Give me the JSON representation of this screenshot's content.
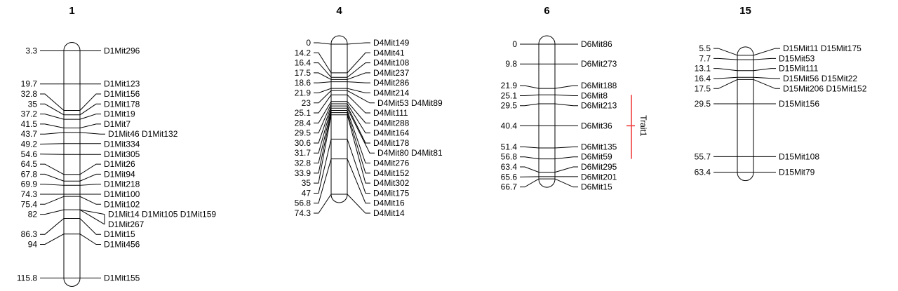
{
  "colors": {
    "background": "#ffffff",
    "line": "#000000",
    "text": "#000000",
    "trait": "#ee3f3f"
  },
  "chart_data": {
    "type": "linkage-map",
    "orientation": "vertical",
    "chromosomes": [
      {
        "title": "1",
        "markers": [
          {
            "pos": "3.3",
            "rows": [
              "D1Mit296"
            ]
          },
          {
            "pos": "19.7",
            "rows": [
              "D1Mit123"
            ]
          },
          {
            "pos": "32.8",
            "rows": [
              "D1Mit156"
            ]
          },
          {
            "pos": "35",
            "rows": [
              "D1Mit178"
            ]
          },
          {
            "pos": "37.2",
            "rows": [
              "D1Mit19"
            ]
          },
          {
            "pos": "41.5",
            "rows": [
              "D1Mit7"
            ]
          },
          {
            "pos": "43.7",
            "rows": [
              "D1Mit46 D1Mit132"
            ]
          },
          {
            "pos": "49.2",
            "rows": [
              "D1Mit334"
            ]
          },
          {
            "pos": "54.6",
            "rows": [
              "D1Mit305"
            ]
          },
          {
            "pos": "64.5",
            "rows": [
              "D1Mit26"
            ]
          },
          {
            "pos": "67.8",
            "rows": [
              "D1Mit94"
            ]
          },
          {
            "pos": "69.9",
            "rows": [
              "D1Mit218"
            ]
          },
          {
            "pos": "74.3",
            "rows": [
              "D1Mit100"
            ]
          },
          {
            "pos": "75.4",
            "rows": [
              "D1Mit102"
            ]
          },
          {
            "pos": "82",
            "rows": [
              "D1Mit14 D1Mit105 D1Mit159",
              "D1Mit267"
            ]
          },
          {
            "pos": "86.3",
            "rows": [
              "D1Mit15"
            ]
          },
          {
            "pos": "94",
            "rows": [
              "D1Mit456"
            ]
          },
          {
            "pos": "115.8",
            "rows": [
              "D1Mit155"
            ]
          }
        ]
      },
      {
        "title": "4",
        "markers": [
          {
            "pos": "0",
            "rows": [
              "D4Mit149"
            ]
          },
          {
            "pos": "14.2",
            "rows": [
              "D4Mit41"
            ]
          },
          {
            "pos": "16.4",
            "rows": [
              "D4Mit108"
            ]
          },
          {
            "pos": "17.5",
            "rows": [
              "D4Mit237"
            ]
          },
          {
            "pos": "18.6",
            "rows": [
              "D4Mit286"
            ]
          },
          {
            "pos": "21.9",
            "rows": [
              "D4Mit214"
            ]
          },
          {
            "pos": "23",
            "rows": [
              "D4Mit53 D4Mit89"
            ]
          },
          {
            "pos": "25.1",
            "rows": [
              "D4Mit111"
            ]
          },
          {
            "pos": "28.4",
            "rows": [
              "D4Mit288"
            ]
          },
          {
            "pos": "29.5",
            "rows": [
              "D4Mit164"
            ]
          },
          {
            "pos": "30.6",
            "rows": [
              "D4Mit178"
            ]
          },
          {
            "pos": "31.7",
            "rows": [
              "D4Mit80 D4Mit81"
            ]
          },
          {
            "pos": "32.8",
            "rows": [
              "D4Mit276"
            ]
          },
          {
            "pos": "33.9",
            "rows": [
              "D4Mit152"
            ]
          },
          {
            "pos": "35",
            "rows": [
              "D4Mit302"
            ]
          },
          {
            "pos": "47",
            "rows": [
              "D4Mit175"
            ]
          },
          {
            "pos": "56.8",
            "rows": [
              "D4Mit16"
            ]
          },
          {
            "pos": "74.3",
            "rows": [
              "D4Mit14"
            ]
          }
        ]
      },
      {
        "title": "6",
        "markers": [
          {
            "pos": "0",
            "rows": [
              "D6Mit86"
            ]
          },
          {
            "pos": "9.8",
            "rows": [
              "D6Mit273"
            ]
          },
          {
            "pos": "21.9",
            "rows": [
              "D6Mit188"
            ]
          },
          {
            "pos": "25.1",
            "rows": [
              "D6Mit8"
            ]
          },
          {
            "pos": "29.5",
            "rows": [
              "D6Mit213"
            ]
          },
          {
            "pos": "40.4",
            "rows": [
              "D6Mit36"
            ]
          },
          {
            "pos": "51.4",
            "rows": [
              "D6Mit135"
            ]
          },
          {
            "pos": "56.8",
            "rows": [
              "D6Mit59"
            ]
          },
          {
            "pos": "63.4",
            "rows": [
              "D6Mit295"
            ]
          },
          {
            "pos": "65.6",
            "rows": [
              "D6Mit201"
            ]
          },
          {
            "pos": "66.7",
            "rows": [
              "D6Mit15"
            ]
          }
        ],
        "trait": {
          "label": "Trait1",
          "from": "25.1",
          "to": "56.8",
          "anchor": "40.4"
        }
      },
      {
        "title": "15",
        "markers": [
          {
            "pos": "5.5",
            "rows": [
              "D15Mit11 D15Mit175"
            ]
          },
          {
            "pos": "7.7",
            "rows": [
              "D15Mit53"
            ]
          },
          {
            "pos": "13.1",
            "rows": [
              "D15Mit111"
            ]
          },
          {
            "pos": "16.4",
            "rows": [
              "D15Mit56 D15Mit22"
            ]
          },
          {
            "pos": "17.5",
            "rows": [
              "D15Mit206 D15Mit152"
            ]
          },
          {
            "pos": "29.5",
            "rows": [
              "D15Mit156"
            ]
          },
          {
            "pos": "55.7",
            "rows": [
              "D15Mit108"
            ]
          },
          {
            "pos": "63.4",
            "rows": [
              "D15Mit79"
            ]
          }
        ]
      }
    ]
  }
}
